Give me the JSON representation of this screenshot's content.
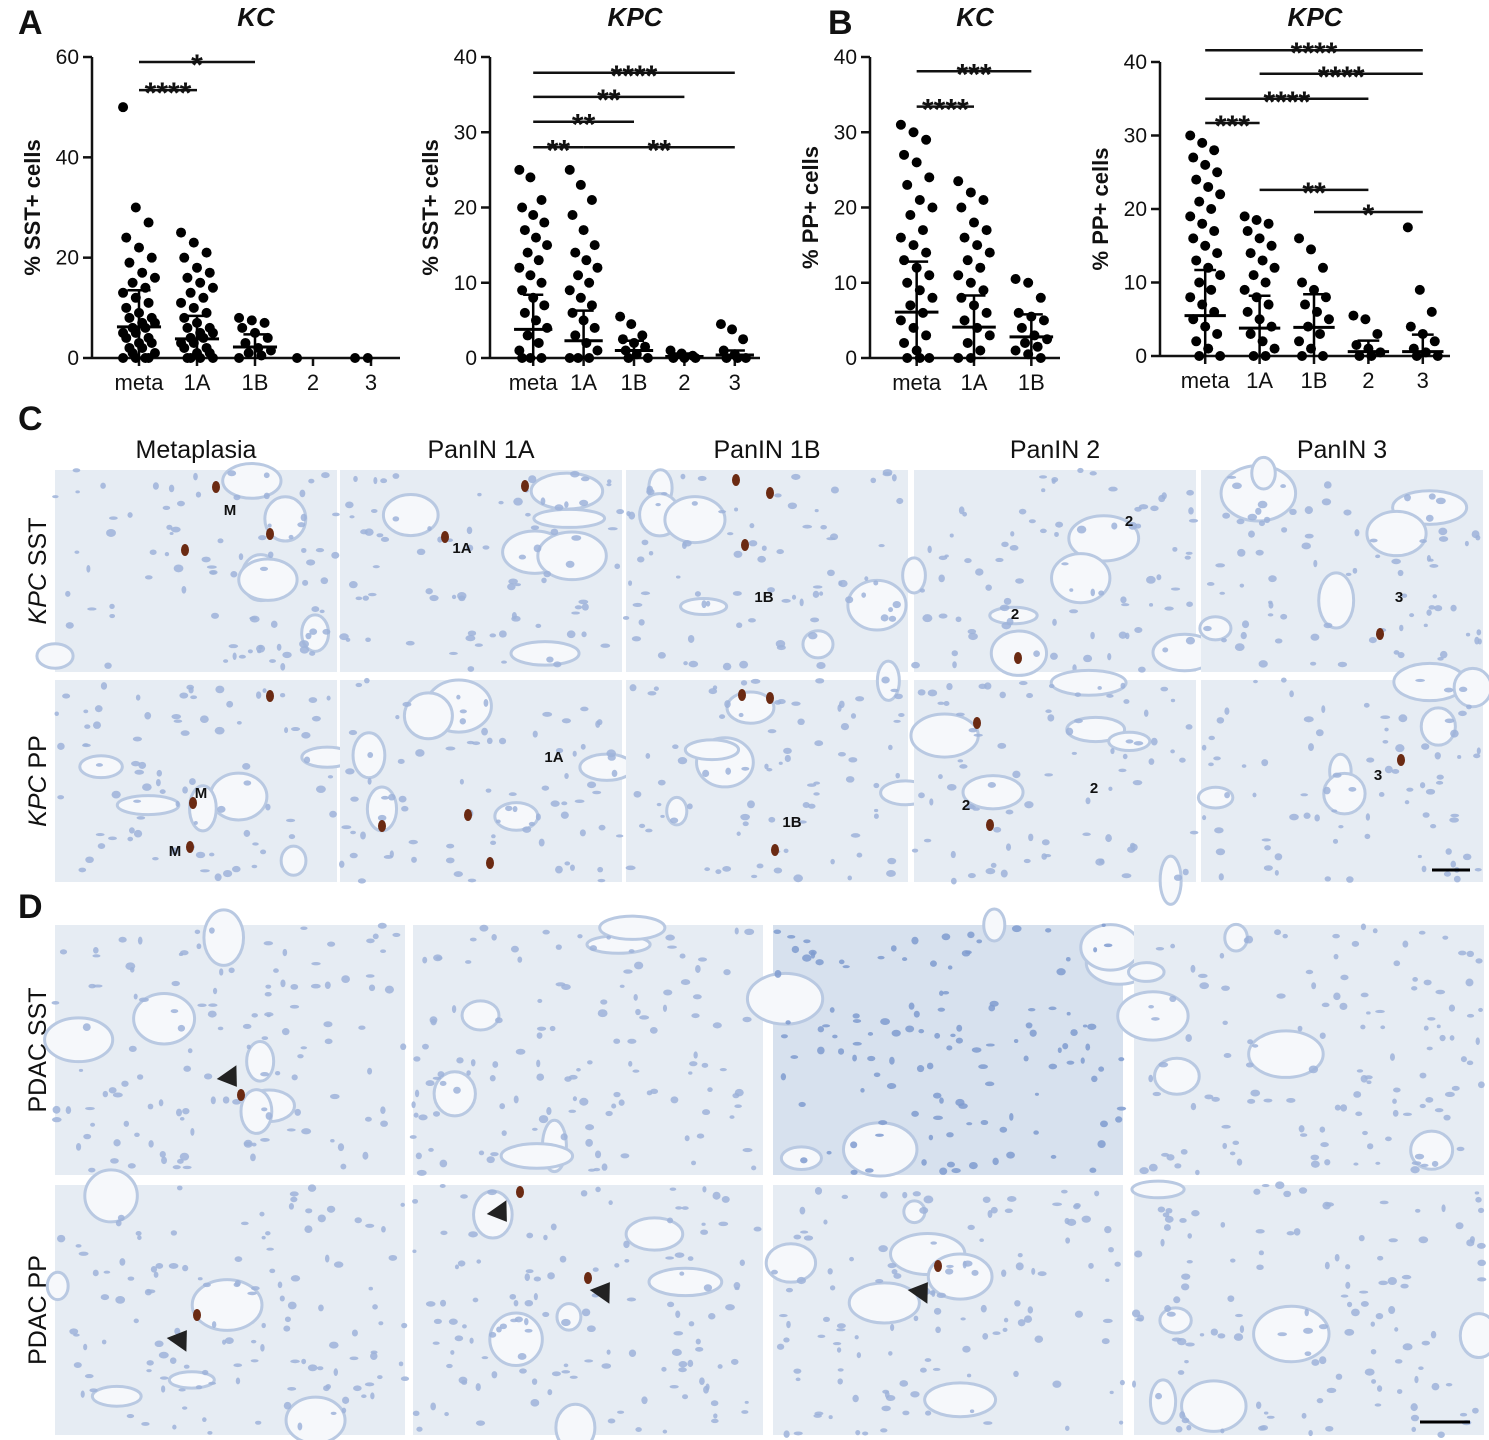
{
  "panel_labels": [
    "A",
    "B",
    "C",
    "D"
  ],
  "chart_data": [
    {
      "type": "dot",
      "title": "KC",
      "y_label": "% SST+ cells",
      "categories": [
        "meta",
        "1A",
        "1B",
        "2",
        "3"
      ],
      "points": [
        [
          50,
          30,
          27,
          24,
          22,
          20,
          19,
          17,
          16,
          15,
          14,
          13,
          12,
          11,
          10,
          9,
          8,
          8,
          7,
          7,
          6,
          6,
          5,
          5,
          4,
          4,
          3,
          3,
          2,
          2,
          1,
          1,
          0,
          0,
          0,
          0
        ],
        [
          25,
          23,
          21,
          20,
          18,
          17,
          16,
          15,
          14,
          13,
          12,
          11,
          10,
          9,
          8,
          7,
          6,
          6,
          5,
          5,
          4,
          4,
          3,
          3,
          2,
          2,
          1,
          1,
          0,
          0,
          0,
          0
        ],
        [
          8,
          7.5,
          7,
          6,
          5,
          4,
          3,
          2,
          1.5,
          1,
          0.5,
          0
        ],
        [
          0
        ],
        [
          0,
          0
        ]
      ],
      "mean": [
        6.2,
        3.8,
        2.2,
        null,
        null
      ],
      "sd": [
        7.3,
        4.6,
        2.5,
        null,
        null
      ],
      "ylim": [
        0,
        60
      ],
      "yticks": [
        0,
        20,
        40,
        60
      ],
      "brackets": [
        {
          "from": "meta",
          "to": "1B",
          "y": 59,
          "label": "*"
        },
        {
          "from": "meta",
          "to": "1A",
          "y": 53.4,
          "label": "****"
        }
      ]
    },
    {
      "type": "dot",
      "title": "KPC",
      "y_label": "% SST+ cells",
      "categories": [
        "meta",
        "1A",
        "1B",
        "2",
        "3"
      ],
      "points": [
        [
          25,
          24,
          21,
          20,
          19,
          18,
          17,
          16,
          15,
          14,
          13,
          12,
          11,
          10,
          9,
          8,
          7,
          6,
          5,
          4,
          3,
          2,
          1,
          0,
          0,
          0
        ],
        [
          25,
          23,
          21,
          19,
          17,
          15,
          14,
          13,
          12,
          11,
          10,
          9,
          8,
          7,
          6,
          5,
          4,
          3,
          2,
          1,
          0,
          0,
          0
        ],
        [
          5.5,
          4.5,
          3,
          2.5,
          2,
          1.5,
          1,
          0.5,
          0,
          0
        ],
        [
          1,
          0.6,
          0.3,
          0,
          0,
          0
        ],
        [
          4.5,
          3.8,
          2.5,
          1,
          0.5,
          0,
          0,
          0
        ]
      ],
      "mean": [
        3.8,
        2.3,
        1,
        0.2,
        0.4
      ],
      "sd": [
        4.6,
        4,
        1.3,
        0.4,
        0.6
      ],
      "ylim": [
        0,
        40
      ],
      "yticks": [
        0,
        10,
        20,
        30,
        40
      ],
      "brackets": [
        {
          "from": "meta",
          "to": "3",
          "y": 37.9,
          "label": "****"
        },
        {
          "from": "meta",
          "to": "2",
          "y": 34.7,
          "label": "**"
        },
        {
          "from": "meta",
          "to": "1B",
          "y": 31.4,
          "label": "**"
        },
        {
          "from": "meta",
          "to": "1A",
          "y": 28,
          "label": "**"
        },
        {
          "from": "1A",
          "to": "3",
          "y": 28,
          "label": "**"
        }
      ]
    },
    {
      "type": "dot",
      "title": "KC",
      "y_label": "% PP+ cells",
      "categories": [
        "meta",
        "1A",
        "1B"
      ],
      "points": [
        [
          31,
          30,
          29,
          27,
          26,
          24,
          23,
          21,
          20,
          19,
          17,
          16,
          15,
          14,
          13,
          12,
          11,
          10,
          9,
          8,
          7,
          6,
          5,
          4,
          3,
          2,
          1,
          0,
          0,
          0
        ],
        [
          23.5,
          22,
          21,
          20,
          18,
          17,
          16,
          15,
          14,
          13,
          12,
          11,
          10,
          9,
          8,
          7,
          6,
          5,
          4,
          3,
          2,
          1,
          0,
          0
        ],
        [
          10.5,
          10,
          8,
          6,
          5.5,
          5,
          4,
          3,
          2.5,
          2,
          1.5,
          1,
          0.5,
          0
        ]
      ],
      "mean": [
        6.1,
        4.1,
        2.8
      ],
      "sd": [
        6.7,
        4.2,
        3
      ],
      "ylim": [
        0,
        40
      ],
      "yticks": [
        0,
        10,
        20,
        30,
        40
      ],
      "brackets": [
        {
          "from": "meta",
          "to": "1B",
          "y": 38.1,
          "label": "***"
        },
        {
          "from": "meta",
          "to": "1A",
          "y": 33.4,
          "label": "****"
        }
      ]
    },
    {
      "type": "dot",
      "title": "KPC",
      "y_label": "% PP+ cells",
      "categories": [
        "meta",
        "1A",
        "1B",
        "2",
        "3"
      ],
      "points": [
        [
          30,
          29,
          28,
          27,
          26,
          25,
          24,
          23,
          22,
          21,
          20,
          19,
          18,
          17,
          16,
          15,
          14,
          13,
          12,
          11,
          10,
          9,
          8,
          7,
          6,
          5,
          4,
          3,
          2,
          1,
          0,
          0
        ],
        [
          19,
          18.5,
          18,
          17,
          16,
          15,
          14,
          13,
          12,
          11,
          10,
          9,
          8,
          7,
          6,
          5,
          4,
          3,
          2,
          1,
          0,
          0
        ],
        [
          16,
          14.5,
          12,
          10,
          9,
          8,
          7,
          6,
          5,
          4,
          3,
          2,
          1,
          0,
          0
        ],
        [
          5.5,
          5,
          3,
          1.5,
          1,
          0.5,
          0,
          0
        ],
        [
          17.5,
          9,
          6,
          4,
          3,
          2,
          1,
          0.5,
          0,
          0
        ]
      ],
      "mean": [
        5.5,
        3.8,
        3.9,
        0.6,
        0.6
      ],
      "sd": [
        6.2,
        4.4,
        4.5,
        1.5,
        2.3
      ],
      "ylim": [
        0,
        40
      ],
      "yticks": [
        0,
        10,
        20,
        30,
        40
      ],
      "brackets": [
        {
          "from": "meta",
          "to": "3",
          "y": 41.6,
          "label": "****"
        },
        {
          "from": "1A",
          "to": "3",
          "y": 38.4,
          "label": "****"
        },
        {
          "from": "meta",
          "to": "2",
          "y": 35,
          "label": "****"
        },
        {
          "from": "meta",
          "to": "1A",
          "y": 31.7,
          "label": "***"
        },
        {
          "from": "1A",
          "to": "2",
          "y": 22.6,
          "label": "**"
        },
        {
          "from": "1B",
          "to": "3",
          "y": 19.6,
          "label": "*"
        }
      ]
    }
  ],
  "panel_c": {
    "columns": [
      "Metaplasia",
      "PanIN 1A",
      "PanIN 1B",
      "PanIN 2",
      "PanIN 3"
    ],
    "rows": [
      {
        "genotype": "KPC",
        "marker": "SST",
        "image_labels": [
          [
            "M"
          ],
          [
            "1A"
          ],
          [
            "1B"
          ],
          [
            "2",
            "2"
          ],
          [
            "3"
          ]
        ]
      },
      {
        "genotype": "KPC",
        "marker": "PP",
        "image_labels": [
          [
            "M",
            "M"
          ],
          [
            "1A"
          ],
          [
            "1B"
          ],
          [
            "2",
            "2"
          ],
          [
            "3"
          ]
        ]
      }
    ]
  },
  "panel_d": {
    "rows": [
      "PDAC SST",
      "PDAC PP"
    ]
  }
}
